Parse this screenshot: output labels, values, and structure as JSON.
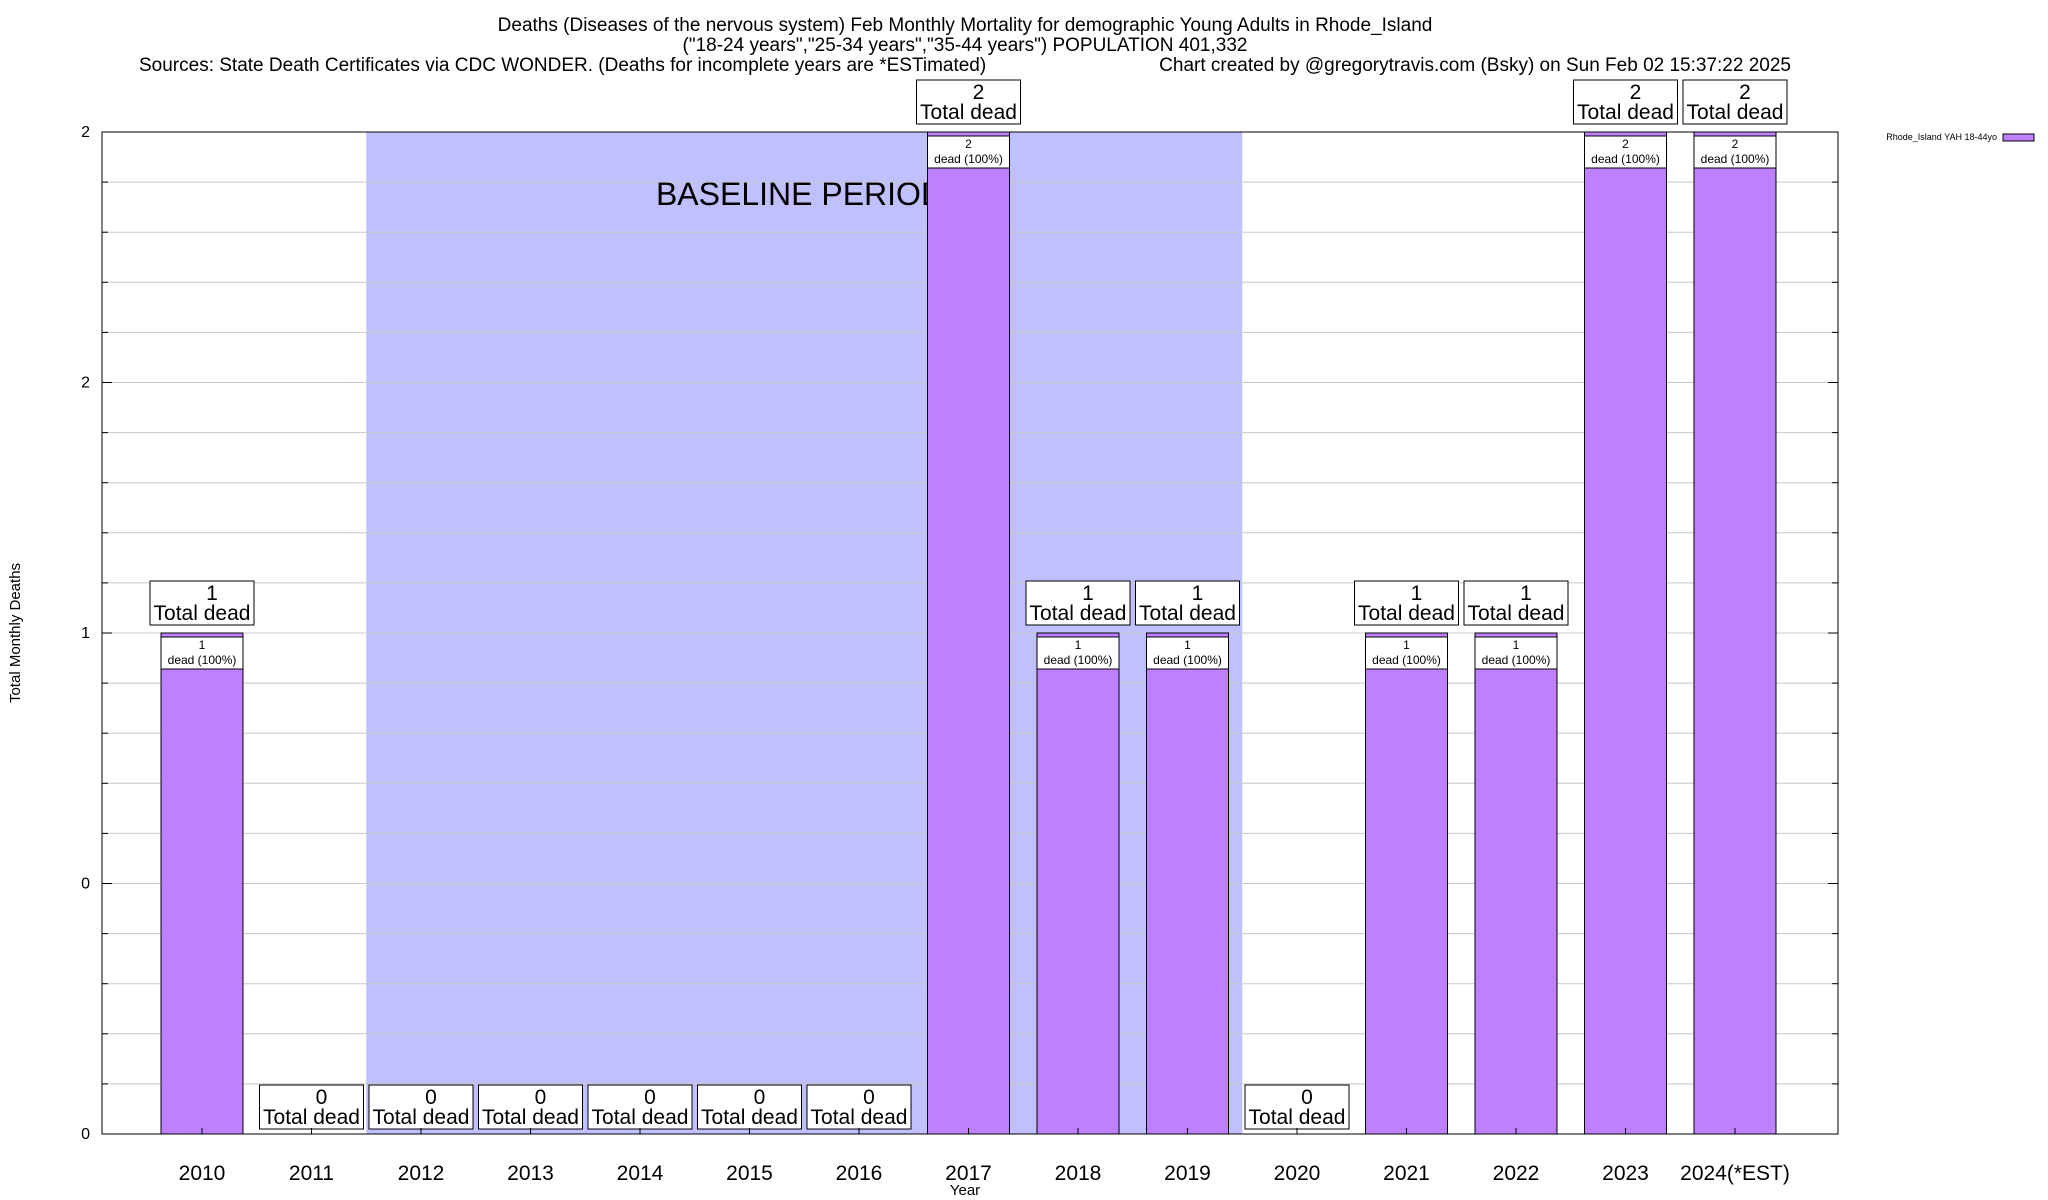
{
  "chart_data": {
    "type": "bar",
    "title_lines": [
      "Deaths (Diseases of the nervous system) Feb Monthly Mortality for demographic Young Adults in Rhode_Island",
      "(\"18-24 years\",\"25-34 years\",\"35-44 years\") POPULATION 401,332"
    ],
    "sources_text": "Sources: State Death Certificates via CDC WONDER. (Deaths for incomplete years are *ESTimated)",
    "credit_text": "Chart created by @gregorytravis.com (Bsky) on Sun Feb 02 15:37:22 2025",
    "xlabel": "Year",
    "ylabel": "Total Monthly Deaths",
    "ylim": [
      0,
      2
    ],
    "y_tick_labels": [
      "0",
      "0",
      "1",
      "2",
      "2"
    ],
    "categories": [
      "2010",
      "2011",
      "2012",
      "2013",
      "2014",
      "2015",
      "2016",
      "2017",
      "2018",
      "2019",
      "2020",
      "2021",
      "2022",
      "2023",
      "2024(*EST)"
    ],
    "series": [
      {
        "name": "Rhode_Island YAH 18-44yo",
        "color": "#bf80ff",
        "values": [
          1,
          0,
          0,
          0,
          0,
          0,
          0,
          2,
          1,
          1,
          0,
          1,
          1,
          2,
          2
        ]
      }
    ],
    "total_labels": [
      "1",
      "0",
      "0",
      "0",
      "0",
      "0",
      "0",
      "2",
      "1",
      "1",
      "0",
      "1",
      "1",
      "2",
      "2"
    ],
    "total_word": "Total dead",
    "inner_labels": [
      "1",
      "",
      "",
      "",
      "",
      "",
      "",
      "2",
      "1",
      "1",
      "",
      "1",
      "1",
      "2",
      "2"
    ],
    "inner_subtext": "dead (100%)",
    "baseline": {
      "label": "BASELINE PERIOD",
      "start_category": "2012",
      "end_category": "2019",
      "color": "#c0c0ff"
    },
    "grid": true,
    "legend_position": "top-right",
    "bar_outline_color": "#000000"
  }
}
